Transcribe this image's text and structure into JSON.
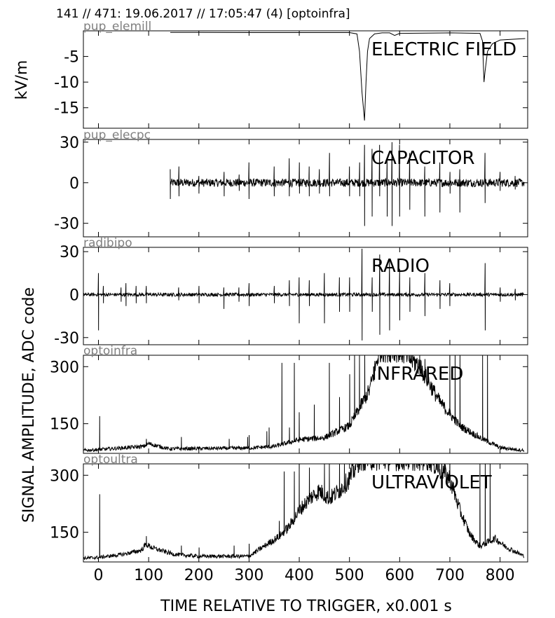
{
  "header": "141 // 471:   19.06.2017 // 17:05:47 (4)  [optoinfra]",
  "shared_ylabel": "SIGNAL AMPLITUDE,  ADC code",
  "xlabel": "TIME RELATIVE TO TRIGGER,   x0.001 s",
  "xlim": [
    -30,
    855
  ],
  "xticks": [
    0,
    100,
    200,
    300,
    400,
    500,
    600,
    700,
    800
  ],
  "line_color": "#000000",
  "channel_label_color": "#808080",
  "chart_data": [
    {
      "type": "line",
      "channel": "pup_elemill",
      "title": "ELECTRIC FIELD",
      "ylabel": "kV/m",
      "ylim": [
        -19,
        0
      ],
      "yticks": [
        -5,
        -10,
        -15
      ],
      "series": [
        {
          "x": [
            143,
            200,
            300,
            400,
            500,
            515,
            520,
            525,
            530,
            533,
            536,
            540,
            550,
            565,
            580,
            590,
            600,
            700,
            760,
            765,
            768,
            770,
            775,
            785,
            800,
            850
          ],
          "y": [
            -0.3,
            -0.3,
            -0.35,
            -0.35,
            -0.35,
            -0.6,
            -4,
            -12,
            -17.5,
            -10,
            -4,
            -1.5,
            -0.6,
            -0.4,
            -0.4,
            -0.9,
            -0.5,
            -0.4,
            -0.5,
            -2,
            -10,
            -8,
            -4,
            -2.5,
            -1.8,
            -1.5
          ]
        }
      ]
    },
    {
      "type": "line",
      "channel": "pup_elecpc",
      "title": "CAPACITOR",
      "ylim": [
        -40,
        32
      ],
      "yticks": [
        30,
        0,
        -30
      ],
      "series": [
        {
          "baseline_x": [
            143,
            848
          ],
          "spikes": [
            [
              143,
              10,
              -12
            ],
            [
              160,
              12,
              -10
            ],
            [
              200,
              5,
              -8
            ],
            [
              250,
              8,
              -10
            ],
            [
              280,
              6,
              -6
            ],
            [
              300,
              15,
              -12
            ],
            [
              350,
              12,
              -10
            ],
            [
              380,
              18,
              -10
            ],
            [
              400,
              15,
              -8
            ],
            [
              420,
              12,
              -10
            ],
            [
              440,
              10,
              -8
            ],
            [
              460,
              22,
              -10
            ],
            [
              500,
              12,
              -10
            ],
            [
              520,
              15,
              -10
            ],
            [
              530,
              28,
              -32
            ],
            [
              545,
              25,
              -25
            ],
            [
              560,
              28,
              -10
            ],
            [
              575,
              18,
              -25
            ],
            [
              585,
              30,
              -32
            ],
            [
              600,
              28,
              -25
            ],
            [
              620,
              22,
              -20
            ],
            [
              650,
              12,
              -25
            ],
            [
              680,
              15,
              -22
            ],
            [
              700,
              8,
              -8
            ],
            [
              720,
              10,
              -22
            ],
            [
              770,
              22,
              -15
            ],
            [
              800,
              8,
              -6
            ],
            [
              830,
              5,
              -5
            ]
          ]
        }
      ]
    },
    {
      "type": "line",
      "channel": "radibipo",
      "title": "RADIO",
      "ylim": [
        -35,
        33
      ],
      "yticks": [
        30,
        0,
        -30
      ],
      "series": [
        {
          "baseline_x": [
            -30,
            848
          ],
          "spikes": [
            [
              0,
              15,
              -25
            ],
            [
              10,
              6,
              -6
            ],
            [
              45,
              5,
              -5
            ],
            [
              55,
              8,
              -8
            ],
            [
              75,
              6,
              -6
            ],
            [
              95,
              6,
              -6
            ],
            [
              160,
              5,
              -4
            ],
            [
              200,
              6,
              -6
            ],
            [
              250,
              5,
              -10
            ],
            [
              280,
              5,
              -5
            ],
            [
              300,
              8,
              -8
            ],
            [
              350,
              6,
              -6
            ],
            [
              380,
              10,
              -8
            ],
            [
              400,
              12,
              -20
            ],
            [
              420,
              10,
              -8
            ],
            [
              450,
              15,
              -20
            ],
            [
              480,
              12,
              -12
            ],
            [
              500,
              12,
              -12
            ],
            [
              525,
              32,
              -32
            ],
            [
              545,
              12,
              -12
            ],
            [
              560,
              28,
              -28
            ],
            [
              580,
              25,
              -25
            ],
            [
              600,
              18,
              -18
            ],
            [
              620,
              12,
              -12
            ],
            [
              650,
              15,
              -15
            ],
            [
              680,
              10,
              -10
            ],
            [
              700,
              8,
              -8
            ],
            [
              770,
              22,
              -25
            ],
            [
              800,
              5,
              -5
            ],
            [
              830,
              4,
              -4
            ]
          ]
        }
      ]
    },
    {
      "type": "line",
      "channel": "optoinfra",
      "title": "INFRARED",
      "ylim": [
        72,
        330
      ],
      "yticks": [
        300,
        150
      ],
      "series": [
        {
          "baseline": 80,
          "noise": 6,
          "envelope": [
            [
              -30,
              78
            ],
            [
              0,
              80
            ],
            [
              90,
              88
            ],
            [
              100,
              95
            ],
            [
              140,
              82
            ],
            [
              300,
              84
            ],
            [
              350,
              88
            ],
            [
              400,
              105
            ],
            [
              450,
              110
            ],
            [
              500,
              140
            ],
            [
              540,
              230
            ],
            [
              560,
              330
            ],
            [
              600,
              330
            ],
            [
              640,
              290
            ],
            [
              680,
              200
            ],
            [
              720,
              140
            ],
            [
              760,
              110
            ],
            [
              800,
              85
            ],
            [
              848,
              78
            ]
          ],
          "spikes": [
            [
              2,
              170
            ],
            [
              95,
              110
            ],
            [
              165,
              115
            ],
            [
              260,
              110
            ],
            [
              297,
              115
            ],
            [
              300,
              120
            ],
            [
              335,
              130
            ],
            [
              340,
              140
            ],
            [
              365,
              310
            ],
            [
              380,
              140
            ],
            [
              390,
              310
            ],
            [
              400,
              180
            ],
            [
              430,
              200
            ],
            [
              460,
              310
            ],
            [
              480,
              220
            ],
            [
              500,
              280
            ],
            [
              510,
              330
            ],
            [
              520,
              330
            ],
            [
              530,
              330
            ],
            [
              620,
              330
            ],
            [
              640,
              330
            ],
            [
              650,
              320
            ],
            [
              700,
              330
            ],
            [
              710,
              330
            ],
            [
              720,
              330
            ],
            [
              765,
              330
            ],
            [
              775,
              330
            ]
          ]
        }
      ]
    },
    {
      "type": "line",
      "channel": "optoultra",
      "title": "ULTRAVIOLET",
      "ylim": [
        72,
        330
      ],
      "yticks": [
        300,
        150
      ],
      "series": [
        {
          "baseline": 82,
          "noise": 6,
          "envelope": [
            [
              -30,
              80
            ],
            [
              0,
              82
            ],
            [
              50,
              90
            ],
            [
              85,
              100
            ],
            [
              95,
              115
            ],
            [
              110,
              105
            ],
            [
              150,
              90
            ],
            [
              200,
              85
            ],
            [
              300,
              85
            ],
            [
              330,
              110
            ],
            [
              360,
              135
            ],
            [
              380,
              160
            ],
            [
              400,
              200
            ],
            [
              420,
              230
            ],
            [
              440,
              250
            ],
            [
              460,
              230
            ],
            [
              480,
              250
            ],
            [
              500,
              280
            ],
            [
              520,
              330
            ],
            [
              600,
              330
            ],
            [
              660,
              330
            ],
            [
              700,
              280
            ],
            [
              720,
              200
            ],
            [
              740,
              140
            ],
            [
              760,
              110
            ],
            [
              790,
              130
            ],
            [
              810,
              110
            ],
            [
              848,
              85
            ]
          ],
          "spikes": [
            [
              2,
              250
            ],
            [
              95,
              140
            ],
            [
              165,
              115
            ],
            [
              200,
              110
            ],
            [
              270,
              115
            ],
            [
              300,
              120
            ],
            [
              340,
              130
            ],
            [
              360,
              180
            ],
            [
              370,
              310
            ],
            [
              390,
              310
            ],
            [
              400,
              330
            ],
            [
              420,
              320
            ],
            [
              450,
              330
            ],
            [
              460,
              330
            ],
            [
              480,
              330
            ],
            [
              490,
              330
            ],
            [
              520,
              330
            ],
            [
              530,
              330
            ],
            [
              545,
              330
            ],
            [
              650,
              330
            ],
            [
              700,
              330
            ],
            [
              760,
              330
            ],
            [
              770,
              330
            ],
            [
              780,
              330
            ]
          ]
        }
      ]
    }
  ]
}
